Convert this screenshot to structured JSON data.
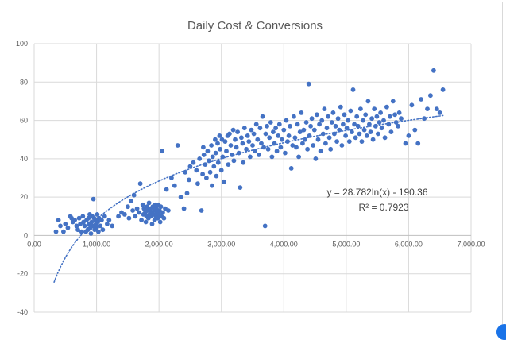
{
  "chart_data": {
    "type": "scatter",
    "title": "Daily Cost & Conversions",
    "xlabel": "",
    "ylabel": "",
    "xlim": [
      0,
      7000
    ],
    "ylim": [
      -40,
      100
    ],
    "x_ticks": [
      "0.00",
      "1,000.00",
      "2,000.00",
      "3,000.00",
      "4,000.00",
      "5,000.00",
      "6,000.00",
      "7,000.00"
    ],
    "y_ticks": [
      "-40",
      "-20",
      "0",
      "20",
      "40",
      "60",
      "80",
      "100"
    ],
    "grid": true,
    "legend": "none",
    "trendline": {
      "type": "logarithmic",
      "a": 28.782,
      "b": -190.36,
      "x_range": [
        320,
        6550
      ],
      "equation_label": "y = 28.782ln(x) - 190.36",
      "r2_label": "R² = 0.7923"
    },
    "series": [
      {
        "points": [
          [
            350,
            2
          ],
          [
            390,
            8
          ],
          [
            420,
            5
          ],
          [
            470,
            2
          ],
          [
            500,
            6
          ],
          [
            540,
            4
          ],
          [
            580,
            10
          ],
          [
            600,
            9
          ],
          [
            620,
            7
          ],
          [
            650,
            8
          ],
          [
            680,
            5
          ],
          [
            700,
            3
          ],
          [
            720,
            9
          ],
          [
            740,
            6
          ],
          [
            760,
            2
          ],
          [
            780,
            10
          ],
          [
            790,
            7
          ],
          [
            810,
            5
          ],
          [
            830,
            2
          ],
          [
            840,
            8
          ],
          [
            860,
            3
          ],
          [
            870,
            9
          ],
          [
            880,
            6
          ],
          [
            890,
            11
          ],
          [
            900,
            4
          ],
          [
            910,
            1
          ],
          [
            920,
            7
          ],
          [
            930,
            10
          ],
          [
            940,
            5
          ],
          [
            950,
            19
          ],
          [
            960,
            9
          ],
          [
            970,
            3
          ],
          [
            980,
            8
          ],
          [
            990,
            6
          ],
          [
            1000,
            4
          ],
          [
            1010,
            11
          ],
          [
            1020,
            7
          ],
          [
            1030,
            2
          ],
          [
            1040,
            9
          ],
          [
            1060,
            5
          ],
          [
            1080,
            8
          ],
          [
            1100,
            3
          ],
          [
            1130,
            10
          ],
          [
            1170,
            6
          ],
          [
            1200,
            8
          ],
          [
            1250,
            5
          ],
          [
            1350,
            10
          ],
          [
            1400,
            12
          ],
          [
            1450,
            11
          ],
          [
            1500,
            15
          ],
          [
            1520,
            9
          ],
          [
            1550,
            18
          ],
          [
            1580,
            13
          ],
          [
            1600,
            21
          ],
          [
            1620,
            10
          ],
          [
            1650,
            14
          ],
          [
            1680,
            12
          ],
          [
            1700,
            27
          ],
          [
            1720,
            8
          ],
          [
            1740,
            16
          ],
          [
            1750,
            11
          ],
          [
            1760,
            14
          ],
          [
            1780,
            12
          ],
          [
            1790,
            7
          ],
          [
            1800,
            10
          ],
          [
            1810,
            15
          ],
          [
            1820,
            13
          ],
          [
            1830,
            9
          ],
          [
            1840,
            17
          ],
          [
            1850,
            11
          ],
          [
            1860,
            14
          ],
          [
            1870,
            10
          ],
          [
            1880,
            12
          ],
          [
            1890,
            6
          ],
          [
            1900,
            15
          ],
          [
            1910,
            11
          ],
          [
            1920,
            13
          ],
          [
            1930,
            8
          ],
          [
            1940,
            16
          ],
          [
            1950,
            10
          ],
          [
            1960,
            14
          ],
          [
            1970,
            12
          ],
          [
            1980,
            9
          ],
          [
            1990,
            16
          ],
          [
            2000,
            11
          ],
          [
            2010,
            13
          ],
          [
            2020,
            7
          ],
          [
            2030,
            15
          ],
          [
            2040,
            10
          ],
          [
            2050,
            44
          ],
          [
            2060,
            12
          ],
          [
            2080,
            9
          ],
          [
            2100,
            14
          ],
          [
            2120,
            24
          ],
          [
            2150,
            13
          ],
          [
            2200,
            30
          ],
          [
            2250,
            26
          ],
          [
            2300,
            47
          ],
          [
            2350,
            20
          ],
          [
            2400,
            14
          ],
          [
            2420,
            33
          ],
          [
            2450,
            22
          ],
          [
            2480,
            29
          ],
          [
            2500,
            36
          ],
          [
            2550,
            38
          ],
          [
            2600,
            34
          ],
          [
            2620,
            27
          ],
          [
            2650,
            40
          ],
          [
            2680,
            13
          ],
          [
            2700,
            32
          ],
          [
            2710,
            46
          ],
          [
            2720,
            42
          ],
          [
            2740,
            37
          ],
          [
            2760,
            30
          ],
          [
            2780,
            44
          ],
          [
            2800,
            39
          ],
          [
            2820,
            33
          ],
          [
            2840,
            47
          ],
          [
            2850,
            26
          ],
          [
            2860,
            41
          ],
          [
            2880,
            36
          ],
          [
            2900,
            50
          ],
          [
            2910,
            43
          ],
          [
            2920,
            31
          ],
          [
            2940,
            48
          ],
          [
            2950,
            38
          ],
          [
            2970,
            52
          ],
          [
            2980,
            45
          ],
          [
            3000,
            34
          ],
          [
            3010,
            50
          ],
          [
            3020,
            41
          ],
          [
            3040,
            28
          ],
          [
            3060,
            49
          ],
          [
            3080,
            44
          ],
          [
            3100,
            52
          ],
          [
            3110,
            37
          ],
          [
            3130,
            53
          ],
          [
            3150,
            47
          ],
          [
            3170,
            42
          ],
          [
            3190,
            55
          ],
          [
            3200,
            39
          ],
          [
            3220,
            50
          ],
          [
            3240,
            46
          ],
          [
            3260,
            54
          ],
          [
            3280,
            43
          ],
          [
            3300,
            25
          ],
          [
            3320,
            51
          ],
          [
            3340,
            48
          ],
          [
            3350,
            38
          ],
          [
            3370,
            56
          ],
          [
            3400,
            45
          ],
          [
            3420,
            52
          ],
          [
            3440,
            49
          ],
          [
            3460,
            41
          ],
          [
            3480,
            55
          ],
          [
            3500,
            47
          ],
          [
            3520,
            53
          ],
          [
            3540,
            44
          ],
          [
            3560,
            58
          ],
          [
            3580,
            50
          ],
          [
            3600,
            42
          ],
          [
            3620,
            56
          ],
          [
            3640,
            48
          ],
          [
            3660,
            62
          ],
          [
            3680,
            46
          ],
          [
            3700,
            5
          ],
          [
            3710,
            53
          ],
          [
            3730,
            57
          ],
          [
            3750,
            45
          ],
          [
            3770,
            51
          ],
          [
            3790,
            59
          ],
          [
            3810,
            41
          ],
          [
            3830,
            54
          ],
          [
            3850,
            48
          ],
          [
            3870,
            56
          ],
          [
            3890,
            44
          ],
          [
            3910,
            52
          ],
          [
            3930,
            58
          ],
          [
            3950,
            46
          ],
          [
            3970,
            50
          ],
          [
            4000,
            55
          ],
          [
            4020,
            43
          ],
          [
            4040,
            60
          ],
          [
            4060,
            49
          ],
          [
            4080,
            52
          ],
          [
            4100,
            57
          ],
          [
            4120,
            35
          ],
          [
            4140,
            47
          ],
          [
            4160,
            62
          ],
          [
            4180,
            51
          ],
          [
            4200,
            46
          ],
          [
            4220,
            58
          ],
          [
            4240,
            41
          ],
          [
            4260,
            54
          ],
          [
            4280,
            64
          ],
          [
            4300,
            48
          ],
          [
            4320,
            55
          ],
          [
            4340,
            50
          ],
          [
            4360,
            59
          ],
          [
            4380,
            45
          ],
          [
            4400,
            79
          ],
          [
            4410,
            52
          ],
          [
            4430,
            57
          ],
          [
            4450,
            61
          ],
          [
            4470,
            47
          ],
          [
            4490,
            55
          ],
          [
            4510,
            40
          ],
          [
            4530,
            63
          ],
          [
            4550,
            50
          ],
          [
            4570,
            58
          ],
          [
            4590,
            44
          ],
          [
            4610,
            60
          ],
          [
            4630,
            53
          ],
          [
            4650,
            66
          ],
          [
            4670,
            48
          ],
          [
            4690,
            56
          ],
          [
            4710,
            62
          ],
          [
            4730,
            51
          ],
          [
            4750,
            45
          ],
          [
            4770,
            59
          ],
          [
            4790,
            64
          ],
          [
            4810,
            53
          ],
          [
            4830,
            57
          ],
          [
            4850,
            49
          ],
          [
            4870,
            61
          ],
          [
            4890,
            55
          ],
          [
            4910,
            67
          ],
          [
            4930,
            47
          ],
          [
            4950,
            58
          ],
          [
            4970,
            63
          ],
          [
            4990,
            52
          ],
          [
            5010,
            56
          ],
          [
            5030,
            60
          ],
          [
            5050,
            49
          ],
          [
            5070,
            65
          ],
          [
            5090,
            54
          ],
          [
            5110,
            76
          ],
          [
            5130,
            58
          ],
          [
            5150,
            51
          ],
          [
            5170,
            62
          ],
          [
            5190,
            57
          ],
          [
            5210,
            53
          ],
          [
            5230,
            66
          ],
          [
            5250,
            49
          ],
          [
            5270,
            60
          ],
          [
            5290,
            55
          ],
          [
            5310,
            63
          ],
          [
            5330,
            52
          ],
          [
            5350,
            70
          ],
          [
            5370,
            58
          ],
          [
            5390,
            54
          ],
          [
            5410,
            61
          ],
          [
            5430,
            50
          ],
          [
            5450,
            66
          ],
          [
            5470,
            57
          ],
          [
            5490,
            62
          ],
          [
            5510,
            53
          ],
          [
            5530,
            59
          ],
          [
            5550,
            64
          ],
          [
            5570,
            56
          ],
          [
            5600,
            60
          ],
          [
            5620,
            51
          ],
          [
            5650,
            67
          ],
          [
            5680,
            58
          ],
          [
            5700,
            62
          ],
          [
            5720,
            54
          ],
          [
            5750,
            70
          ],
          [
            5780,
            63
          ],
          [
            5800,
            59
          ],
          [
            5830,
            57
          ],
          [
            5850,
            64
          ],
          [
            5880,
            61
          ],
          [
            5950,
            48
          ],
          [
            6000,
            52
          ],
          [
            6050,
            68
          ],
          [
            6100,
            55
          ],
          [
            6150,
            48
          ],
          [
            6200,
            71
          ],
          [
            6250,
            61
          ],
          [
            6300,
            66
          ],
          [
            6350,
            73
          ],
          [
            6400,
            86
          ],
          [
            6450,
            66
          ],
          [
            6500,
            64
          ],
          [
            6550,
            76
          ]
        ]
      }
    ],
    "colors": {
      "marker": "#4472c4",
      "trendline": "#4472c4",
      "grid": "#d9d9d9",
      "text": "#595959"
    }
  }
}
